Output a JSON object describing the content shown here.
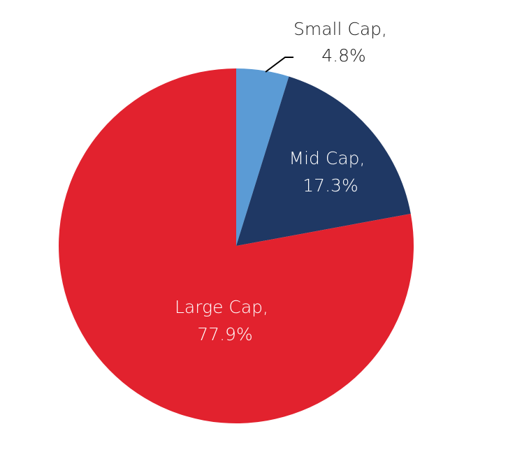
{
  "chart_data": {
    "type": "pie",
    "title": "",
    "series": [
      {
        "values": [
          4.8,
          17.3,
          77.9
        ],
        "categories": [
          "Small Cap",
          "Mid Cap",
          "Large Cap"
        ]
      }
    ],
    "slices": [
      {
        "category": "Small Cap",
        "value": 4.8,
        "label_line1": "Small Cap,",
        "label_line2": "4.8%",
        "color": "#5B9BD5",
        "label_color": "#1a1a1a"
      },
      {
        "category": "Mid Cap",
        "value": 17.3,
        "label_line1": "Mid Cap,",
        "label_line2": "17.3%",
        "color": "#1F3864",
        "label_color": "#ffffff"
      },
      {
        "category": "Large Cap",
        "value": 77.9,
        "label_line1": "Large Cap,",
        "label_line2": "77.9%",
        "color": "#E2222E",
        "label_color": "#ffffff"
      }
    ],
    "start_angle": "12 o'clock",
    "direction": "clockwise",
    "legend": "none"
  }
}
